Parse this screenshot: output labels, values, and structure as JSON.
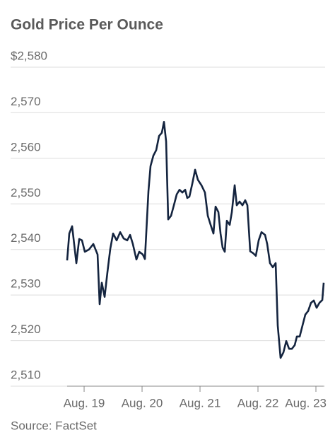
{
  "chart_data": {
    "type": "line",
    "title": "Gold Price Per Ounce",
    "source": "Source: FactSet",
    "x": [
      18.707,
      18.744,
      18.793,
      18.866,
      18.915,
      18.963,
      19.012,
      19.085,
      19.159,
      19.232,
      19.268,
      19.305,
      19.354,
      19.402,
      19.451,
      19.5,
      19.561,
      19.622,
      19.683,
      19.744,
      19.793,
      19.841,
      19.902,
      19.951,
      20.012,
      20.049,
      20.11,
      20.146,
      20.195,
      20.244,
      20.293,
      20.341,
      20.378,
      20.415,
      20.451,
      20.5,
      20.549,
      20.598,
      20.646,
      20.695,
      20.744,
      20.78,
      20.817,
      20.866,
      20.915,
      20.963,
      21.024,
      21.085,
      21.134,
      21.183,
      21.232,
      21.268,
      21.317,
      21.354,
      21.39,
      21.427,
      21.463,
      21.512,
      21.549,
      21.598,
      21.634,
      21.683,
      21.732,
      21.78,
      21.817,
      21.866,
      21.915,
      21.963,
      22.012,
      22.061,
      22.122,
      22.159,
      22.207,
      22.256,
      22.305,
      22.341,
      22.39,
      22.439,
      22.488,
      22.537,
      22.585,
      22.634,
      22.671,
      22.72,
      22.768,
      22.817,
      22.866,
      22.915,
      22.963,
      23.012,
      23.061,
      23.11,
      23.134
    ],
    "series": [
      {
        "name": "Gold",
        "color": "#14243f",
        "values": [
          2537.6,
          2543.5,
          2545.1,
          2537,
          2542.3,
          2542,
          2539.5,
          2540,
          2541.2,
          2538.9,
          2528,
          2532.7,
          2529.6,
          2535,
          2540.1,
          2543.5,
          2542,
          2543.8,
          2542.4,
          2542,
          2543.2,
          2541.2,
          2537.8,
          2539.5,
          2538.9,
          2537.9,
          2552.8,
          2558.3,
          2560.6,
          2561.8,
          2564.9,
          2565.6,
          2568,
          2563.7,
          2546.6,
          2547.4,
          2549.7,
          2552.1,
          2553.1,
          2552.5,
          2553.1,
          2551.3,
          2551.6,
          2554.4,
          2557.5,
          2555.3,
          2554.1,
          2552.5,
          2547.4,
          2545.4,
          2543.5,
          2549.4,
          2548.2,
          2543.5,
          2540.4,
          2539.5,
          2546.3,
          2545.4,
          2548.2,
          2554.1,
          2549.7,
          2550.5,
          2549.7,
          2550.8,
          2549.7,
          2539.6,
          2539.2,
          2538.6,
          2542,
          2543.8,
          2543.2,
          2541.2,
          2537,
          2536.1,
          2537,
          2523.3,
          2516.2,
          2517.4,
          2519.9,
          2518.2,
          2518.2,
          2519,
          2520.9,
          2520.9,
          2523.3,
          2525.7,
          2526.5,
          2528.3,
          2528.8,
          2527.2,
          2528.3,
          2528.9,
          2532.7
        ]
      }
    ],
    "xlim": [
      18.707,
      23.134
    ],
    "xticks": [
      {
        "value": 19,
        "label": "Aug. 19"
      },
      {
        "value": 20,
        "label": "Aug. 20"
      },
      {
        "value": 21,
        "label": "Aug. 21"
      },
      {
        "value": 22,
        "label": "Aug. 22"
      },
      {
        "value": 23,
        "label": "Aug. 23"
      }
    ],
    "ylim": [
      2510,
      2580
    ],
    "yticks": [
      {
        "value": 2510,
        "label": "2,510"
      },
      {
        "value": 2520,
        "label": "2,520"
      },
      {
        "value": 2530,
        "label": "2,530"
      },
      {
        "value": 2540,
        "label": "2,540"
      },
      {
        "value": 2550,
        "label": "2,550"
      },
      {
        "value": 2560,
        "label": "2,560"
      },
      {
        "value": 2570,
        "label": "2,570"
      },
      {
        "value": 2580,
        "label": "$2,580"
      }
    ],
    "grid": true
  }
}
